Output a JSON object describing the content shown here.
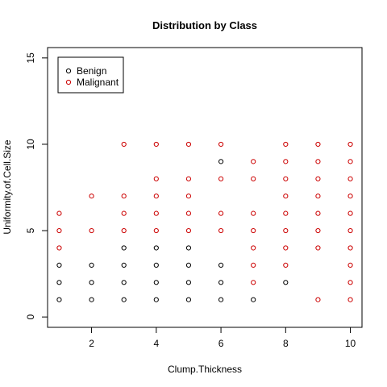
{
  "chart_data": {
    "type": "scatter",
    "title": "Distribution by Class",
    "xlabel": "Clump.Thickness",
    "ylabel": "Uniformity.of.Cell.Size",
    "xlim": [
      0.64,
      10.36
    ],
    "ylim": [
      -0.6,
      15.6
    ],
    "xticks": [
      "2",
      "4",
      "6",
      "8",
      "10"
    ],
    "xtick_values": [
      2,
      4,
      6,
      8,
      10
    ],
    "yticks": [
      "0",
      "5",
      "10",
      "15"
    ],
    "ytick_values": [
      0,
      5,
      10,
      15
    ],
    "legend_position": "top-left",
    "grid": false,
    "series": [
      {
        "name": "Benign",
        "color": "#000000",
        "points": [
          [
            1,
            1
          ],
          [
            1,
            2
          ],
          [
            1,
            3
          ],
          [
            2,
            1
          ],
          [
            2,
            2
          ],
          [
            2,
            3
          ],
          [
            3,
            1
          ],
          [
            3,
            2
          ],
          [
            3,
            3
          ],
          [
            3,
            4
          ],
          [
            4,
            1
          ],
          [
            4,
            2
          ],
          [
            4,
            3
          ],
          [
            4,
            4
          ],
          [
            5,
            1
          ],
          [
            5,
            2
          ],
          [
            5,
            3
          ],
          [
            5,
            4
          ],
          [
            6,
            1
          ],
          [
            6,
            2
          ],
          [
            6,
            3
          ],
          [
            6,
            9
          ],
          [
            7,
            1
          ],
          [
            8,
            2
          ]
        ]
      },
      {
        "name": "Malignant",
        "color": "#cc0000",
        "points": [
          [
            1,
            4
          ],
          [
            1,
            5
          ],
          [
            1,
            6
          ],
          [
            2,
            5
          ],
          [
            2,
            7
          ],
          [
            3,
            5
          ],
          [
            3,
            6
          ],
          [
            3,
            7
          ],
          [
            3,
            10
          ],
          [
            4,
            5
          ],
          [
            4,
            6
          ],
          [
            4,
            7
          ],
          [
            4,
            8
          ],
          [
            4,
            10
          ],
          [
            5,
            5
          ],
          [
            5,
            6
          ],
          [
            5,
            7
          ],
          [
            5,
            8
          ],
          [
            5,
            10
          ],
          [
            6,
            5
          ],
          [
            6,
            6
          ],
          [
            6,
            8
          ],
          [
            6,
            10
          ],
          [
            7,
            2
          ],
          [
            7,
            3
          ],
          [
            7,
            4
          ],
          [
            7,
            5
          ],
          [
            7,
            6
          ],
          [
            7,
            8
          ],
          [
            7,
            9
          ],
          [
            8,
            3
          ],
          [
            8,
            4
          ],
          [
            8,
            5
          ],
          [
            8,
            6
          ],
          [
            8,
            7
          ],
          [
            8,
            8
          ],
          [
            8,
            9
          ],
          [
            8,
            10
          ],
          [
            9,
            1
          ],
          [
            9,
            4
          ],
          [
            9,
            5
          ],
          [
            9,
            6
          ],
          [
            9,
            7
          ],
          [
            9,
            8
          ],
          [
            9,
            9
          ],
          [
            9,
            10
          ],
          [
            10,
            1
          ],
          [
            10,
            2
          ],
          [
            10,
            3
          ],
          [
            10,
            4
          ],
          [
            10,
            5
          ],
          [
            10,
            6
          ],
          [
            10,
            7
          ],
          [
            10,
            8
          ],
          [
            10,
            9
          ],
          [
            10,
            10
          ]
        ]
      }
    ]
  }
}
